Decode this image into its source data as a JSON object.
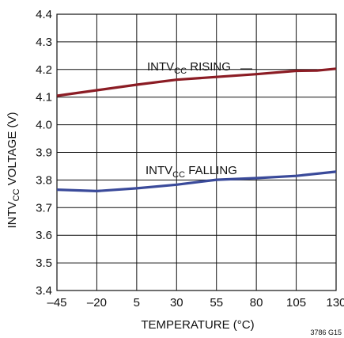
{
  "chart_data": {
    "type": "line",
    "title": "",
    "xlabel": "TEMPERATURE (°C)",
    "ylabel": "INTVCC VOLTAGE (V)",
    "ylabel_main": "INTV",
    "ylabel_sub": "CC",
    "ylabel_rest": " VOLTAGE (V)",
    "xlim": [
      -45,
      130
    ],
    "ylim": [
      3.4,
      4.4
    ],
    "grid": true,
    "x_ticks": [
      "–45",
      "–20",
      "5",
      "30",
      "55",
      "80",
      "105",
      "130"
    ],
    "y_ticks": [
      "4.4",
      "4.3",
      "4.2",
      "4.1",
      "4.0",
      "3.9",
      "3.8",
      "3.7",
      "3.6",
      "3.5",
      "3.4"
    ],
    "figure_id": "3786 G15",
    "series": [
      {
        "name": "INTVCC RISING",
        "label_main": "INTV",
        "label_sub": "CC",
        "label_rest": " RISING",
        "color": "#8b1c24",
        "x": [
          -45,
          -20,
          5,
          30,
          55,
          80,
          105,
          118,
          130
        ],
        "y": [
          4.105,
          4.125,
          4.145,
          4.163,
          4.173,
          4.183,
          4.195,
          4.196,
          4.203
        ]
      },
      {
        "name": "INTVCC FALLING",
        "label_main": "INTV",
        "label_sub": "CC",
        "label_rest": " FALLING",
        "color": "#3a4a9a",
        "x": [
          -45,
          -20,
          5,
          30,
          55,
          80,
          105,
          130
        ],
        "y": [
          3.765,
          3.76,
          3.77,
          3.783,
          3.801,
          3.807,
          3.815,
          3.83
        ]
      }
    ]
  }
}
